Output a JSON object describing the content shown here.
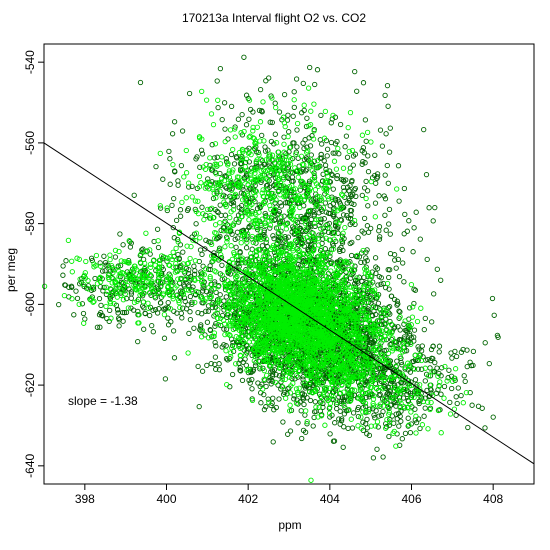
{
  "chart_data": {
    "type": "scatter",
    "title": "170213a   Interval flight O2 vs. CO2",
    "xlabel": "ppm",
    "ylabel": "per meg",
    "xlim": [
      397.0,
      409.0
    ],
    "ylim": [
      -644.5,
      -535.5
    ],
    "xticks": [
      398,
      400,
      402,
      404,
      406,
      408
    ],
    "yticks": [
      -540,
      -560,
      -580,
      -600,
      -620,
      -640
    ],
    "grid": false,
    "legend": "none",
    "colors": {
      "dark_points": "#006400",
      "light_points": "#00ee00",
      "line": "#000000"
    },
    "fit_line": {
      "slope": -1.38,
      "x": [
        397.0,
        409.0
      ],
      "y": [
        -560.0,
        -639.5
      ]
    },
    "annotation": "slope =  -1.38",
    "series": [
      {
        "color": "#006400",
        "clusters": [
          {
            "center": [
              403.2,
              -604
            ],
            "spread": [
              1.0,
              8
            ],
            "n": 1400
          },
          {
            "center": [
              404.2,
              -610
            ],
            "spread": [
              1.0,
              9
            ],
            "n": 900
          },
          {
            "center": [
              402.9,
              -575
            ],
            "spread": [
              1.3,
              12
            ],
            "n": 900
          },
          {
            "center": [
              399.5,
              -596
            ],
            "spread": [
              1.0,
              5
            ],
            "n": 300
          },
          {
            "center": [
              405.6,
              -620
            ],
            "spread": [
              1.0,
              6
            ],
            "n": 300
          }
        ]
      },
      {
        "color": "#00ee00",
        "clusters": [
          {
            "center": [
              403.0,
              -600
            ],
            "spread": [
              0.8,
              7
            ],
            "n": 1500
          },
          {
            "center": [
              404.0,
              -610
            ],
            "spread": [
              0.8,
              7
            ],
            "n": 800
          },
          {
            "center": [
              402.5,
              -572
            ],
            "spread": [
              1.0,
              9
            ],
            "n": 500
          },
          {
            "center": [
              399.4,
              -594
            ],
            "spread": [
              0.9,
              4
            ],
            "n": 250
          },
          {
            "center": [
              405.5,
              -621
            ],
            "spread": [
              0.9,
              5
            ],
            "n": 150
          }
        ]
      }
    ]
  }
}
